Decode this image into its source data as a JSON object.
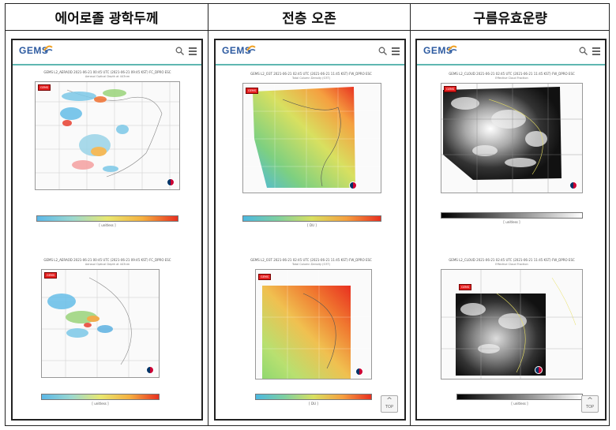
{
  "columns": [
    {
      "header": "에어로졸 광학두께",
      "logo": "GEMS",
      "panels": [
        {
          "title": "GEMS L2_AERAOD 2021-06-21 00:45 UTC (2021-06-21 09:45 KST) FC_DPRO ESC",
          "subtitle": "Aerosol Optical Depth at 443nm",
          "badge": "GEMS",
          "colorbar_label": "[ unitless ]"
        },
        {
          "title": "GEMS L2_AERAOD 2021-06-21 00:45 UTC (2021-06-21 09:45 KST) FC_DPRO ESC",
          "subtitle": "Aerosol Optical Depth at 443nm",
          "badge": "GEMS",
          "colorbar_label": "[ unitless ]"
        }
      ]
    },
    {
      "header": "전층 오존",
      "logo": "GEMS",
      "panels": [
        {
          "title": "GEMS L2_O3T 2021-06-21 02:45 UTC (2021-06-21 11:45 KST) FW_DPRO ESC",
          "subtitle": "Total Column Density (O3T)",
          "badge": "GEMS",
          "colorbar_label": "[ DU ]"
        },
        {
          "title": "GEMS L2_O3T 2021-06-21 02:45 UTC (2021-06-21 11:45 KST) FW_DPRO ESC",
          "subtitle": "Total Column Density (O3T)",
          "badge": "GEMS",
          "colorbar_label": "[ DU ]"
        }
      ]
    },
    {
      "header": "구름유효운량",
      "logo": "GEMS",
      "panels": [
        {
          "title": "GEMS L2_CLOUD 2021-06-21 02:45 UTC (2021-06-21 11:45 KST) FW_DPRO ESC",
          "subtitle": "Effective Cloud Fraction",
          "badge": "GEMS",
          "colorbar_label": "[ unitless ]"
        },
        {
          "title": "GEMS L2_CLOUD 2021-06-21 02:45 UTC (2021-06-21 11:45 KST) FW_DPRO ESC",
          "subtitle": "Effective Cloud Fraction",
          "badge": "GEMS",
          "colorbar_label": "[ unitless ]"
        }
      ]
    }
  ],
  "top_button": {
    "label": "TOP"
  },
  "icons": [
    "search-icon",
    "menu-icon",
    "chevron-up-icon"
  ],
  "colors": {
    "accent": "#5fb7b1",
    "logo": "#2c5aa0",
    "badge": "#e52020"
  }
}
